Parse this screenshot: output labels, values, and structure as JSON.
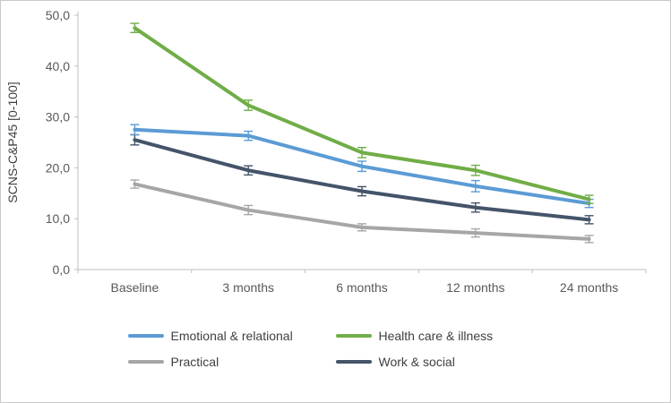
{
  "chart_data": {
    "type": "line",
    "title": "",
    "xlabel": "",
    "ylabel": "SCNS-C&P45 [0-100]",
    "categories": [
      "Baseline",
      "3 months",
      "6 months",
      "12 months",
      "24 months"
    ],
    "ylim": [
      0,
      50
    ],
    "ytick_step": 10,
    "ytick_labels": [
      "0,0",
      "10,0",
      "20,0",
      "30,0",
      "40,0",
      "50,0"
    ],
    "grid": false,
    "legend_position": "bottom",
    "error_bars": true,
    "series": [
      {
        "name": "Emotional & relational",
        "color": "#5B9BD5",
        "values": [
          27.5,
          26.3,
          20.3,
          16.4,
          13.0
        ],
        "error": [
          1.0,
          0.9,
          1.0,
          1.1,
          0.8
        ]
      },
      {
        "name": "Health care & illness",
        "color": "#70AD47",
        "values": [
          47.5,
          32.3,
          23.0,
          19.5,
          13.8
        ],
        "error": [
          0.9,
          1.0,
          1.0,
          1.0,
          0.8
        ]
      },
      {
        "name": "Practical",
        "color": "#A6A6A6",
        "values": [
          16.8,
          11.7,
          8.3,
          7.2,
          6.0
        ],
        "error": [
          0.8,
          0.9,
          0.7,
          0.8,
          0.7
        ]
      },
      {
        "name": "Work & social",
        "color": "#44546A",
        "values": [
          25.5,
          19.5,
          15.4,
          12.2,
          9.8
        ],
        "error": [
          1.0,
          0.9,
          0.9,
          0.9,
          0.8
        ]
      }
    ],
    "legend_rows": [
      [
        "Emotional & relational",
        "Health care & illness"
      ],
      [
        "Practical",
        "Work & social"
      ]
    ],
    "axis_color": "#BFBFBF"
  }
}
